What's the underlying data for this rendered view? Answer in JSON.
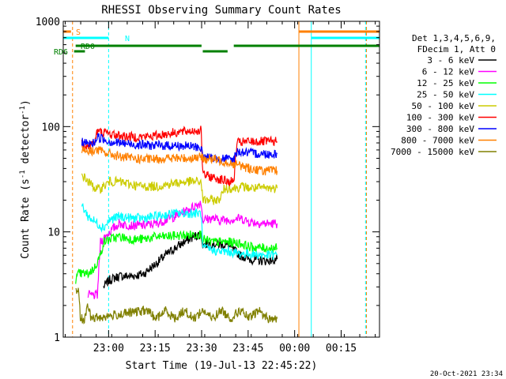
{
  "chart_data": {
    "type": "line",
    "title": "RHESSI Observing Summary Count Rates",
    "xlabel": "Start Time (19-Jul-13 22:45:22)",
    "ylabel": "Count Rate (s",
    "ylabel_sup1": "-1",
    "ylabel_mid": " detector",
    "ylabel_sup2": "-1",
    "ylabel_end": ")",
    "y_scale": "log",
    "ylim": [
      1,
      1000
    ],
    "xlim_minutes": [
      0,
      102
    ],
    "x_ticks": [
      {
        "label": "23:00",
        "min": 14.63
      },
      {
        "label": "23:15",
        "min": 29.63
      },
      {
        "label": "23:30",
        "min": 44.63
      },
      {
        "label": "23:45",
        "min": 59.63
      },
      {
        "label": "00:00",
        "min": 74.63
      },
      {
        "label": "00:15",
        "min": 89.63
      }
    ],
    "y_ticks": [
      {
        "label": "1",
        "v": 1
      },
      {
        "label": "10",
        "v": 10
      },
      {
        "label": "100",
        "v": 100
      },
      {
        "label": "1000",
        "v": 1000
      }
    ],
    "legend_header": [
      "Det 1,3,4,5,6,9,",
      "FDecim 1, Att 0"
    ],
    "legend_position": "right",
    "series": [
      {
        "name": "3 - 6 keV",
        "color": "#000000",
        "points": [
          [
            13,
            3
          ],
          [
            15,
            3.5
          ],
          [
            18,
            3.8
          ],
          [
            22,
            3.8
          ],
          [
            26,
            4
          ],
          [
            28,
            4.5
          ],
          [
            30,
            5
          ],
          [
            33,
            6
          ],
          [
            36,
            7
          ],
          [
            39,
            8
          ],
          [
            42,
            9
          ],
          [
            44.5,
            9.5
          ],
          [
            45,
            7.5
          ],
          [
            48,
            7.8
          ],
          [
            50,
            7.6
          ],
          [
            53,
            7.5
          ],
          [
            57,
            6
          ],
          [
            60,
            5.5
          ],
          [
            65,
            5.3
          ],
          [
            69,
            5.5
          ]
        ]
      },
      {
        "name": "6 - 12 keV",
        "color": "#ff00ff",
        "points": [
          [
            8,
            2.5
          ],
          [
            11,
            2.5
          ],
          [
            12,
            8
          ],
          [
            15,
            10
          ],
          [
            18,
            12
          ],
          [
            22,
            11.5
          ],
          [
            26,
            11.5
          ],
          [
            30,
            12
          ],
          [
            33,
            13
          ],
          [
            36,
            14
          ],
          [
            40,
            16
          ],
          [
            43,
            18
          ],
          [
            44.5,
            19
          ],
          [
            45,
            13
          ],
          [
            48,
            13.5
          ],
          [
            50,
            13
          ],
          [
            53,
            13
          ],
          [
            57,
            13.5
          ],
          [
            60,
            12.5
          ],
          [
            65,
            12
          ],
          [
            69,
            12
          ]
        ]
      },
      {
        "name": "12 - 25 keV",
        "color": "#00ff00",
        "points": [
          [
            4,
            3.5
          ],
          [
            5,
            4
          ],
          [
            8,
            4
          ],
          [
            10,
            4.5
          ],
          [
            12,
            6
          ],
          [
            13,
            8
          ],
          [
            15,
            8.5
          ],
          [
            18,
            9
          ],
          [
            22,
            8.5
          ],
          [
            26,
            8.5
          ],
          [
            30,
            9
          ],
          [
            33,
            9
          ],
          [
            36,
            9.2
          ],
          [
            40,
            9.3
          ],
          [
            43,
            9.5
          ],
          [
            44.5,
            9.5
          ],
          [
            45,
            8.5
          ],
          [
            48,
            8
          ],
          [
            50,
            8
          ],
          [
            53,
            8
          ],
          [
            57,
            7.8
          ],
          [
            60,
            7.2
          ],
          [
            65,
            7
          ],
          [
            69,
            7
          ]
        ]
      },
      {
        "name": "25 - 50 keV",
        "color": "#00ffff",
        "points": [
          [
            6,
            18
          ],
          [
            8,
            14
          ],
          [
            11,
            12
          ],
          [
            13,
            11
          ],
          [
            15,
            13
          ],
          [
            18,
            14
          ],
          [
            22,
            13.5
          ],
          [
            26,
            13.5
          ],
          [
            30,
            14
          ],
          [
            33,
            14.5
          ],
          [
            36,
            15
          ],
          [
            40,
            15
          ],
          [
            43,
            15
          ],
          [
            44.5,
            15
          ],
          [
            45,
            7
          ],
          [
            48,
            6.8
          ],
          [
            50,
            6.5
          ],
          [
            53,
            6.5
          ],
          [
            57,
            6.2
          ],
          [
            60,
            6.2
          ],
          [
            65,
            6
          ],
          [
            69,
            6
          ]
        ]
      },
      {
        "name": "50 - 100 keV",
        "color": "#cccc00",
        "points": [
          [
            6,
            35
          ],
          [
            8,
            30
          ],
          [
            11,
            25
          ],
          [
            13,
            27
          ],
          [
            15,
            30
          ],
          [
            18,
            30
          ],
          [
            22,
            28
          ],
          [
            26,
            27
          ],
          [
            30,
            27
          ],
          [
            33,
            28
          ],
          [
            36,
            29
          ],
          [
            40,
            30
          ],
          [
            43,
            30
          ],
          [
            44.5,
            30
          ],
          [
            45,
            20
          ],
          [
            48,
            20
          ],
          [
            50,
            20
          ],
          [
            51,
            22
          ],
          [
            52,
            26
          ],
          [
            55,
            26
          ],
          [
            58,
            27
          ],
          [
            60,
            26
          ],
          [
            65,
            26
          ],
          [
            69,
            26
          ]
        ]
      },
      {
        "name": "100 - 300 keV",
        "color": "#ff0000",
        "points": [
          [
            6,
            70
          ],
          [
            8,
            65
          ],
          [
            10,
            70
          ],
          [
            11,
            90
          ],
          [
            13,
            88
          ],
          [
            15,
            85
          ],
          [
            18,
            82
          ],
          [
            22,
            80
          ],
          [
            26,
            80
          ],
          [
            30,
            82
          ],
          [
            33,
            85
          ],
          [
            36,
            88
          ],
          [
            40,
            90
          ],
          [
            43,
            92
          ],
          [
            44.5,
            92
          ],
          [
            45,
            35
          ],
          [
            48,
            33
          ],
          [
            50,
            32
          ],
          [
            53,
            30
          ],
          [
            55,
            30
          ],
          [
            56,
            70
          ],
          [
            60,
            72
          ],
          [
            65,
            72
          ],
          [
            69,
            72
          ]
        ]
      },
      {
        "name": "300 - 800 keV",
        "color": "#0000ff",
        "points": [
          [
            6,
            72
          ],
          [
            8,
            68
          ],
          [
            10,
            70
          ],
          [
            11,
            80
          ],
          [
            13,
            76
          ],
          [
            15,
            72
          ],
          [
            18,
            70
          ],
          [
            22,
            68
          ],
          [
            26,
            67
          ],
          [
            30,
            66
          ],
          [
            33,
            66
          ],
          [
            36,
            66
          ],
          [
            40,
            65
          ],
          [
            43,
            64
          ],
          [
            44.5,
            63
          ],
          [
            45,
            52
          ],
          [
            48,
            50
          ],
          [
            50,
            50
          ],
          [
            53,
            49
          ],
          [
            55,
            48
          ],
          [
            56,
            58
          ],
          [
            60,
            56
          ],
          [
            65,
            55
          ],
          [
            69,
            55
          ]
        ]
      },
      {
        "name": "800 - 7000 keV",
        "color": "#ff8000",
        "points": [
          [
            6,
            62
          ],
          [
            8,
            58
          ],
          [
            11,
            60
          ],
          [
            13,
            57
          ],
          [
            15,
            55
          ],
          [
            18,
            52
          ],
          [
            22,
            50
          ],
          [
            26,
            49
          ],
          [
            30,
            49
          ],
          [
            33,
            50
          ],
          [
            36,
            50
          ],
          [
            40,
            50
          ],
          [
            43,
            51
          ],
          [
            44.5,
            51
          ],
          [
            45,
            50
          ],
          [
            48,
            49
          ],
          [
            50,
            48
          ],
          [
            53,
            46
          ],
          [
            55,
            44
          ],
          [
            58,
            42
          ],
          [
            60,
            40
          ],
          [
            65,
            38
          ],
          [
            69,
            38
          ]
        ]
      },
      {
        "name": "7000 - 15000 keV",
        "color": "#808000",
        "points": [
          [
            4,
            2.8
          ],
          [
            5,
            2.8
          ],
          [
            5.5,
            1.5
          ],
          [
            7,
            1.5
          ],
          [
            8,
            2
          ],
          [
            9,
            1.5
          ],
          [
            27,
            1.8
          ],
          [
            30,
            1.5
          ],
          [
            33,
            1.8
          ],
          [
            36,
            1.5
          ],
          [
            39,
            1.8
          ],
          [
            42,
            1.5
          ],
          [
            45,
            1.8
          ],
          [
            48,
            1.5
          ],
          [
            51,
            1.8
          ],
          [
            54,
            1.5
          ],
          [
            57,
            1.8
          ],
          [
            60,
            1.5
          ],
          [
            63,
            1.8
          ],
          [
            66,
            1.5
          ],
          [
            69,
            1.5
          ]
        ]
      }
    ],
    "state_bars": [
      {
        "label": "S",
        "color": "#ff8000",
        "level": 0,
        "segments": [
          [
            0,
            2.5
          ],
          [
            76,
            102
          ]
        ]
      },
      {
        "label": "N",
        "color": "#00ffff",
        "level": 1,
        "segments": [
          [
            0,
            14.63
          ],
          [
            80,
            102
          ]
        ]
      },
      {
        "label": "RD0",
        "color": "#008000",
        "level": 2,
        "segments": [
          [
            4,
            44.6
          ],
          [
            55,
            102
          ]
        ]
      },
      {
        "label": "RD6",
        "color": "#008000",
        "level": 3,
        "segments": [
          [
            3.5,
            7
          ],
          [
            45,
            53
          ]
        ]
      }
    ],
    "vertical_lines": [
      {
        "min": 0,
        "color": "#00ffff",
        "dashed": false
      },
      {
        "min": 3,
        "color": "#ff8000",
        "dashed": true
      },
      {
        "min": 14.63,
        "color": "#00ffff",
        "dashed": true
      },
      {
        "min": 76,
        "color": "#ff8000",
        "dashed": false
      },
      {
        "min": 80,
        "color": "#00ffff",
        "dashed": false
      },
      {
        "min": 97.5,
        "color": "#00ffff",
        "dashed": true
      },
      {
        "min": 97.8,
        "color": "#ff8000",
        "dashed": true
      }
    ],
    "grid": false
  },
  "footer": {
    "timestamp": "20-Oct-2021 23:34"
  }
}
